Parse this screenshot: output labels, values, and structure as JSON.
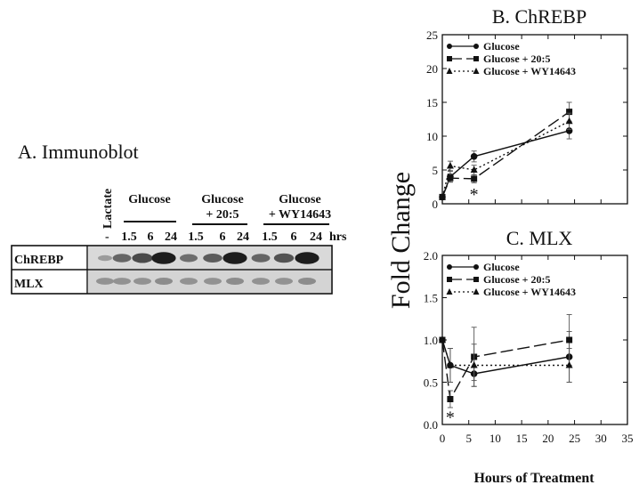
{
  "panel_a": {
    "title": "A. Immunoblot",
    "groups": [
      {
        "label_lines": [
          "Glucose"
        ],
        "timepoints": [
          "1.5",
          "6",
          "24"
        ]
      },
      {
        "label_lines": [
          "Glucose",
          "+ 20:5"
        ],
        "timepoints": [
          "1.5",
          "6",
          "24"
        ]
      },
      {
        "label_lines": [
          "Glucose",
          "+ WY14643"
        ],
        "timepoints": [
          "1.5",
          "6",
          "24"
        ]
      }
    ],
    "control_lane": {
      "label": "Lactate",
      "mark": "-"
    },
    "time_unit": "hrs",
    "rows": [
      "ChREBP",
      "MLX"
    ],
    "chrebp_band_intensity": [
      0.25,
      0.55,
      0.7,
      0.95,
      0.5,
      0.6,
      0.95,
      0.55,
      0.65,
      0.95
    ],
    "mlx_band_intensity": [
      0.45,
      0.45,
      0.45,
      0.5,
      0.45,
      0.45,
      0.5,
      0.45,
      0.45,
      0.5
    ]
  },
  "shared": {
    "ylabel": "Fold Change",
    "xlabel": "Hours of Treatment"
  },
  "chart_data": [
    {
      "type": "line",
      "title": "B. ChREBP",
      "xlim": [
        0,
        35
      ],
      "ylim": [
        0,
        25
      ],
      "yticks": [
        "0",
        "5",
        "10",
        "15",
        "20",
        "25"
      ],
      "xticks": [],
      "legend_position": "top-left",
      "series": [
        {
          "name": "Glucose",
          "marker": "circle",
          "dash": "solid",
          "x": [
            0,
            1.5,
            6,
            24
          ],
          "y": [
            1.0,
            4.0,
            7.0,
            10.8
          ],
          "err": [
            0,
            0.8,
            0.8,
            1.2
          ]
        },
        {
          "name": "Glucose + 20:5",
          "marker": "square",
          "dash": "long-dash",
          "x": [
            0,
            1.5,
            6,
            24
          ],
          "y": [
            1.0,
            3.8,
            3.7,
            13.6
          ],
          "err": [
            0,
            0.6,
            0.6,
            1.4
          ]
        },
        {
          "name": "Glucose + WY14643",
          "marker": "triangle",
          "dash": "dotted",
          "x": [
            0,
            1.5,
            6,
            24
          ],
          "y": [
            1.0,
            5.6,
            5.0,
            12.2
          ],
          "err": [
            0,
            0.7,
            0.7,
            1.2
          ]
        }
      ],
      "annotations": [
        {
          "text": "*",
          "x": 6,
          "y": 1.6
        }
      ]
    },
    {
      "type": "line",
      "title": "C. MLX",
      "xlim": [
        0,
        35
      ],
      "ylim": [
        0,
        2.0
      ],
      "yticks": [
        "0.0",
        "0.5",
        "1.0",
        "1.5",
        "2.0"
      ],
      "xticks": [
        "0",
        "5",
        "10",
        "15",
        "20",
        "25",
        "30",
        "35"
      ],
      "legend_position": "top-left",
      "series": [
        {
          "name": "Glucose",
          "marker": "circle",
          "dash": "solid",
          "x": [
            0,
            1.5,
            6,
            24
          ],
          "y": [
            1.0,
            0.7,
            0.6,
            0.8
          ],
          "err": [
            0,
            0.2,
            0.08,
            0.3
          ]
        },
        {
          "name": "Glucose + 20:5",
          "marker": "square",
          "dash": "long-dash",
          "x": [
            0,
            1.5,
            6,
            24
          ],
          "y": [
            1.0,
            0.3,
            0.8,
            1.0
          ],
          "err": [
            0,
            0.1,
            0.35,
            0.3
          ]
        },
        {
          "name": "Glucose + WY14643",
          "marker": "triangle",
          "dash": "dotted",
          "x": [
            0,
            1.5,
            6,
            24
          ],
          "y": [
            1.0,
            0.7,
            0.7,
            0.7
          ],
          "err": [
            0,
            0.2,
            0.25,
            0.2
          ]
        }
      ],
      "annotations": [
        {
          "text": "*",
          "x": 1.5,
          "y": 0.1
        }
      ]
    }
  ]
}
